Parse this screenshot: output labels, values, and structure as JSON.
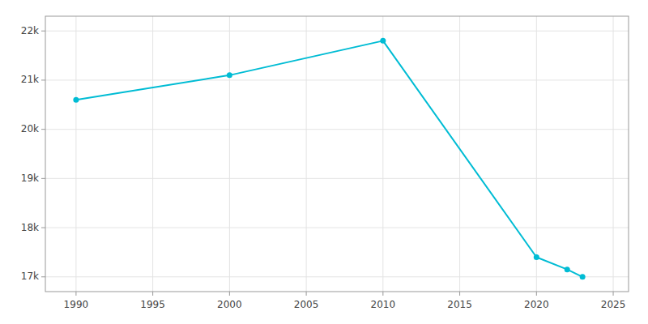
{
  "chart_data": {
    "type": "line",
    "x": [
      1990,
      2000,
      2010,
      2020,
      2022,
      2023
    ],
    "values": [
      20600,
      21100,
      21800,
      17400,
      17150,
      17000
    ],
    "color": "#00BCD4",
    "marker": "circle",
    "xlim": [
      1988,
      2026
    ],
    "ylim": [
      16700,
      22300
    ],
    "xticks": [
      1990,
      1995,
      2000,
      2005,
      2010,
      2015,
      2020,
      2025
    ],
    "yticks": [
      {
        "value": 17000,
        "label": "17k"
      },
      {
        "value": 18000,
        "label": "18k"
      },
      {
        "value": 19000,
        "label": "19k"
      },
      {
        "value": 20000,
        "label": "20k"
      },
      {
        "value": 21000,
        "label": "21k"
      },
      {
        "value": 22000,
        "label": "22k"
      }
    ],
    "grid": true
  }
}
